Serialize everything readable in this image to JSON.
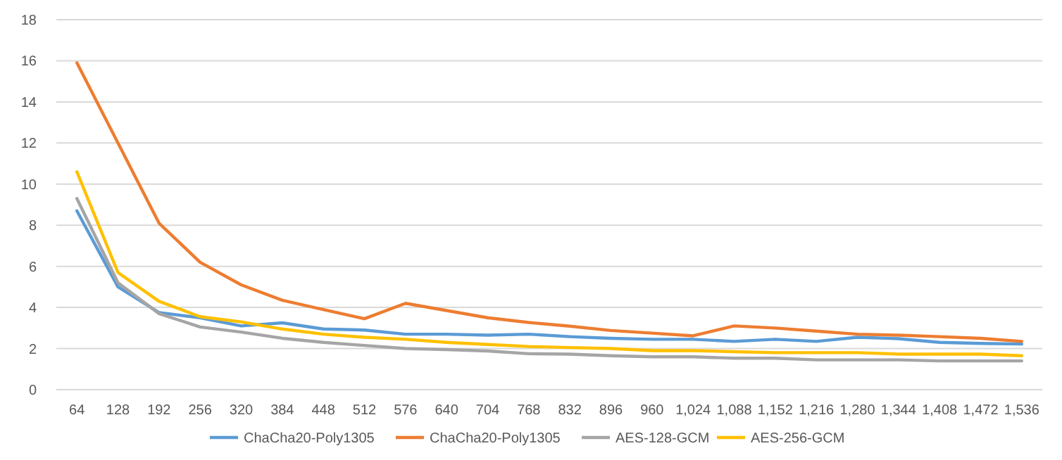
{
  "chart_data": {
    "type": "line",
    "categories": [
      "64",
      "128",
      "192",
      "256",
      "320",
      "384",
      "448",
      "512",
      "576",
      "640",
      "704",
      "768",
      "832",
      "896",
      "960",
      "1,024",
      "1,088",
      "1,152",
      "1,216",
      "1,280",
      "1,344",
      "1,408",
      "1,472",
      "1,536"
    ],
    "series": [
      {
        "name": "ChaCha20-Poly1305",
        "color": "#5b9bd5",
        "values": [
          8.7,
          5.0,
          3.75,
          3.5,
          3.1,
          3.25,
          2.95,
          2.9,
          2.7,
          2.7,
          2.65,
          2.7,
          2.58,
          2.5,
          2.45,
          2.45,
          2.35,
          2.45,
          2.35,
          2.55,
          2.48,
          2.3,
          2.25,
          2.22
        ]
      },
      {
        "name": "ChaCha20-Poly1305",
        "color": "#ed7d31",
        "values": [
          15.9,
          12.0,
          8.1,
          6.2,
          5.1,
          4.35,
          3.9,
          3.45,
          4.2,
          3.85,
          3.5,
          3.27,
          3.09,
          2.88,
          2.75,
          2.62,
          3.1,
          3.0,
          2.85,
          2.7,
          2.65,
          2.58,
          2.5,
          2.35
        ]
      },
      {
        "name": "AES-128-GCM",
        "color": "#a5a5a5",
        "values": [
          9.3,
          5.2,
          3.7,
          3.05,
          2.8,
          2.5,
          2.3,
          2.15,
          2.0,
          1.95,
          1.88,
          1.75,
          1.73,
          1.65,
          1.6,
          1.6,
          1.53,
          1.53,
          1.45,
          1.45,
          1.45,
          1.4,
          1.4,
          1.4
        ]
      },
      {
        "name": "AES-256-GCM",
        "color": "#ffc000",
        "values": [
          10.6,
          5.7,
          4.3,
          3.55,
          3.3,
          2.95,
          2.7,
          2.55,
          2.45,
          2.3,
          2.2,
          2.1,
          2.05,
          2.0,
          1.9,
          1.9,
          1.85,
          1.8,
          1.8,
          1.8,
          1.73,
          1.73,
          1.73,
          1.65
        ]
      }
    ],
    "ylim": [
      0,
      18
    ],
    "yticks": [
      0,
      2,
      4,
      6,
      8,
      10,
      12,
      14,
      16,
      18
    ],
    "grid": "y",
    "legend": "bottom",
    "marker": "none",
    "line_style": "solid"
  }
}
